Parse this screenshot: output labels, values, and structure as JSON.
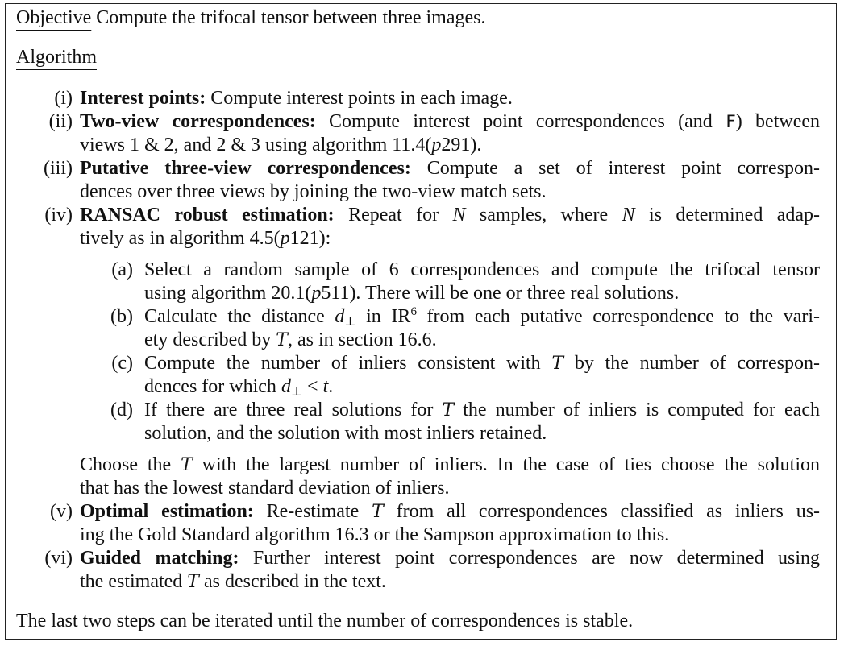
{
  "objective": {
    "label": "Objective",
    "text": "Compute the trifocal tensor between three images."
  },
  "algorithm_heading": "Algorithm",
  "steps": [
    {
      "num": "(i)",
      "title": "Interest points:",
      "lines": [
        "Compute interest points in each image."
      ]
    },
    {
      "num": "(ii)",
      "title": "Two-view correspondences:",
      "line1_a": "Compute interest point correspondences (and ",
      "line1_f": "F",
      "line1_b": ") between",
      "line2_a": "views 1 & 2, and 2 & 3 using algorithm 11.4(",
      "line2_p": "p",
      "line2_b": "291)."
    },
    {
      "num": "(iii)",
      "title": "Putative three-view correspondences:",
      "line1": "Compute a set of interest point correspon-",
      "line2": "dences over three views by joining the two-view match sets."
    },
    {
      "num": "(iv)",
      "title": "RANSAC robust estimation:",
      "line1_a": "Repeat for ",
      "line1_n1": "N",
      "line1_b": " samples, where ",
      "line1_n2": "N",
      "line1_c": " is determined adap-",
      "line2_a": "tively as in algorithm 4.5(",
      "line2_p": "p",
      "line2_b": "121):"
    },
    {
      "num": "(v)",
      "title": "Optimal estimation:",
      "line1_a": "Re-estimate ",
      "line1_t": "T",
      "line1_b": " from all correspondences classified as inliers us-",
      "line2": "ing the Gold Standard algorithm 16.3 or the Sampson approximation to this."
    },
    {
      "num": "(vi)",
      "title": "Guided matching:",
      "line1": "Further interest point correspondences are now determined using",
      "line2_a": "the estimated ",
      "line2_t": "T",
      "line2_b": " as described in the text."
    }
  ],
  "substeps": [
    {
      "num": "(a)",
      "line1": "Select a random sample of 6 correspondences and compute the trifocal tensor",
      "line2_a": "using algorithm 20.1(",
      "line2_p": "p",
      "line2_b": "511). There will be one or three real solutions."
    },
    {
      "num": "(b)",
      "line1_a": "Calculate the distance ",
      "line1_d": "d",
      "line1_perp": "⊥",
      "line1_b": " in ",
      "line1_ir": "IR",
      "line1_sup": "6",
      "line1_c": " from each putative correspondence to the vari-",
      "line2_a": "ety described by ",
      "line2_t": "T",
      "line2_b": ", as in section 16.6."
    },
    {
      "num": "(c)",
      "line1_a": "Compute the number of inliers consistent with ",
      "line1_t": "T",
      "line1_b": " by the number of correspon-",
      "line2_a": "dences for which ",
      "line2_d": "d",
      "line2_perp": "⊥",
      "line2_b": " < ",
      "line2_t": "t",
      "line2_c": "."
    },
    {
      "num": "(d)",
      "line1_a": "If there are three real solutions for ",
      "line1_t": "T",
      "line1_b": " the number of inliers is computed for each",
      "line2": "solution, and the solution with most inliers retained."
    }
  ],
  "choose": {
    "line1_a": "Choose the ",
    "line1_t": "T",
    "line1_b": " with the largest number of inliers. In the case of ties choose the solution",
    "line2": "that has the lowest standard deviation of inliers."
  },
  "footer": "The last two steps can be iterated until the number of correspondences is stable."
}
